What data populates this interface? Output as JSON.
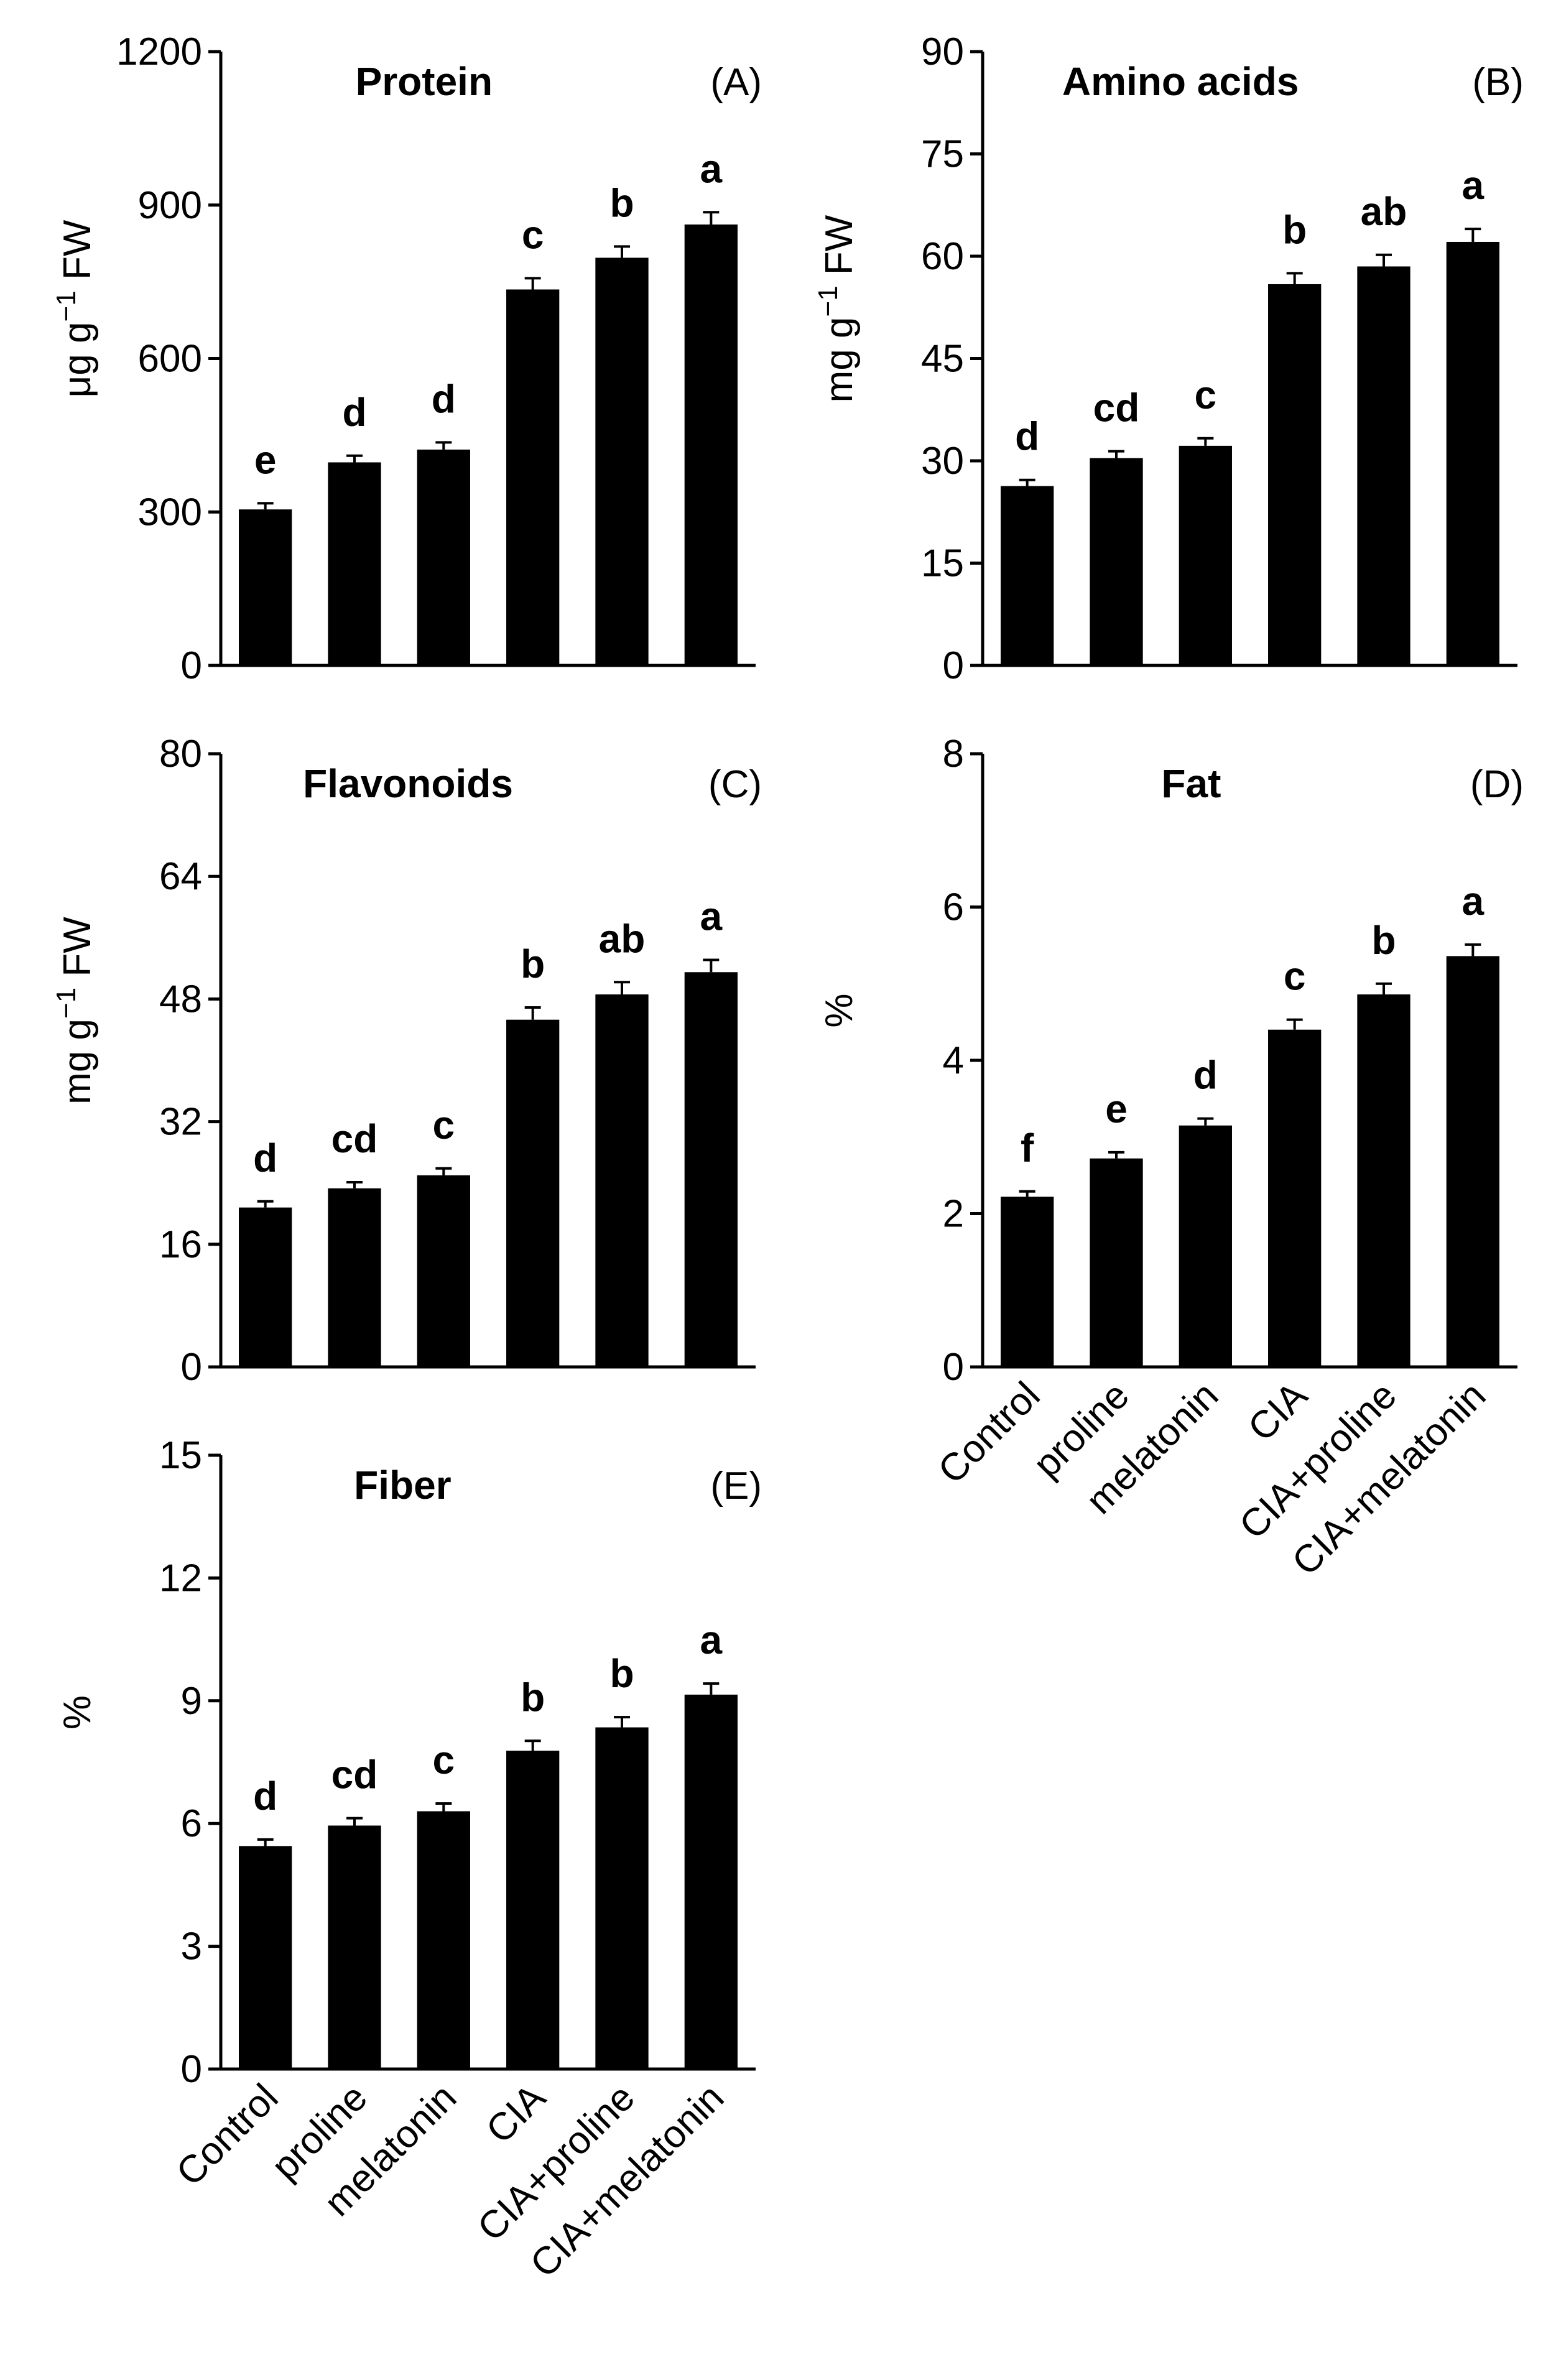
{
  "chart_data": [
    {
      "type": "bar",
      "panel": "(A)",
      "title": "Protein",
      "ylabel": "μg g",
      "ylabel_sup": "−1",
      "ylabel_tail": " FW",
      "xlabel": "",
      "ylim": [
        0,
        1200
      ],
      "yticks": [
        "0",
        "300",
        "600",
        "900",
        "1200"
      ],
      "categories": [
        "Control",
        "proline",
        "melatonin",
        "CIA",
        "CIA+proline",
        "CIA+melatonin"
      ],
      "show_categories": false,
      "values": [
        305,
        397,
        422,
        735,
        797,
        862
      ],
      "errors": [
        12,
        13,
        14,
        22,
        22,
        24
      ],
      "letters": [
        "e",
        "d",
        "d",
        "c",
        "b",
        "a"
      ]
    },
    {
      "type": "bar",
      "panel": "(B)",
      "title": "Amino acids",
      "ylabel": "mg g",
      "ylabel_sup": "−1",
      "ylabel_tail": " FW",
      "xlabel": "",
      "ylim": [
        0,
        90
      ],
      "yticks": [
        "0",
        "15",
        "30",
        "45",
        "60",
        "75",
        "90"
      ],
      "categories": [
        "Control",
        "proline",
        "melatonin",
        "CIA",
        "CIA+proline",
        "CIA+melatonin"
      ],
      "show_categories": false,
      "values": [
        26.3,
        30.4,
        32.2,
        55.9,
        58.5,
        62.1
      ],
      "errors": [
        0.9,
        1.0,
        1.1,
        1.6,
        1.7,
        1.9
      ],
      "letters": [
        "d",
        "cd",
        "c",
        "b",
        "ab",
        "a"
      ]
    },
    {
      "type": "bar",
      "panel": "(C)",
      "title": "Flavonoids",
      "ylabel": "mg g",
      "ylabel_sup": "−1",
      "ylabel_tail": " FW",
      "xlabel": "",
      "ylim": [
        0,
        80
      ],
      "yticks": [
        "0",
        "16",
        "32",
        "48",
        "64",
        "80"
      ],
      "categories": [
        "Control",
        "proline",
        "melatonin",
        "CIA",
        "CIA+proline",
        "CIA+melatonin"
      ],
      "show_categories": false,
      "values": [
        20.8,
        23.3,
        25.0,
        45.3,
        48.6,
        51.5
      ],
      "errors": [
        0.8,
        0.8,
        0.9,
        1.6,
        1.6,
        1.6
      ],
      "letters": [
        "d",
        "cd",
        "c",
        "b",
        "ab",
        "a"
      ]
    },
    {
      "type": "bar",
      "panel": "(D)",
      "title": "Fat",
      "ylabel": "%",
      "ylabel_sup": "",
      "ylabel_tail": "",
      "xlabel": "",
      "ylim": [
        0,
        8
      ],
      "yticks": [
        "0",
        "2",
        "4",
        "6",
        "8"
      ],
      "categories": [
        "Control",
        "proline",
        "melatonin",
        "CIA",
        "CIA+proline",
        "CIA+melatonin"
      ],
      "show_categories": true,
      "values": [
        2.22,
        2.72,
        3.15,
        4.4,
        4.86,
        5.36
      ],
      "errors": [
        0.07,
        0.08,
        0.09,
        0.13,
        0.14,
        0.15
      ],
      "letters": [
        "f",
        "e",
        "d",
        "c",
        "b",
        "a"
      ]
    },
    {
      "type": "bar",
      "panel": "(E)",
      "title": "Fiber",
      "ylabel": "%",
      "ylabel_sup": "",
      "ylabel_tail": "",
      "xlabel": "",
      "ylim": [
        0,
        15
      ],
      "yticks": [
        "0",
        "3",
        "6",
        "9",
        "12",
        "15"
      ],
      "categories": [
        "Control",
        "proline",
        "melatonin",
        "CIA",
        "CIA+proline",
        "CIA+melatonin"
      ],
      "show_categories": true,
      "values": [
        5.45,
        5.95,
        6.3,
        7.78,
        8.35,
        9.15
      ],
      "errors": [
        0.16,
        0.18,
        0.19,
        0.24,
        0.25,
        0.27
      ],
      "letters": [
        "d",
        "cd",
        "c",
        "b",
        "b",
        "a"
      ]
    }
  ],
  "colors": {
    "bar": "#000000",
    "axis": "#000000",
    "background": "#ffffff"
  }
}
